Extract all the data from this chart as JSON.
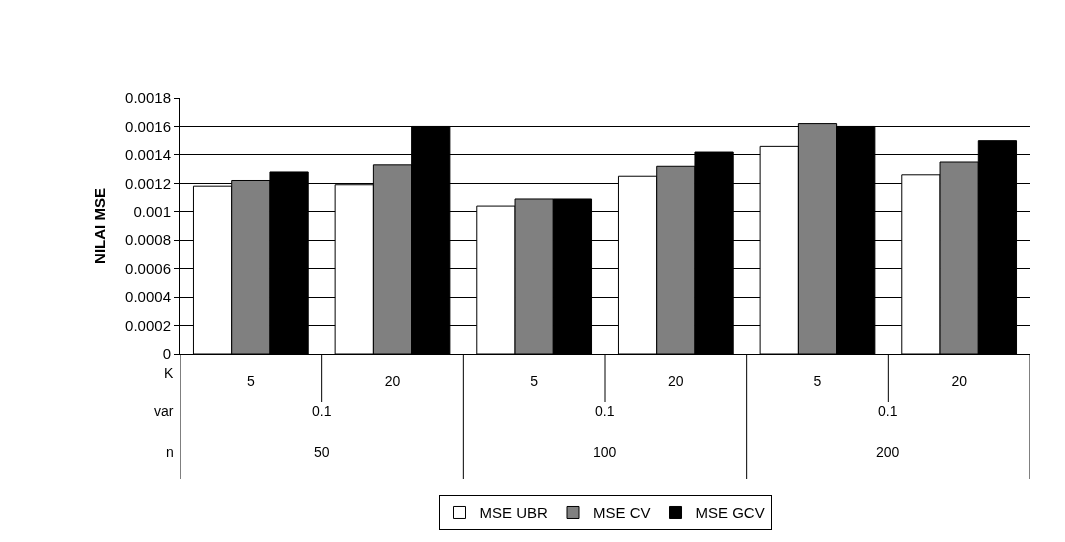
{
  "chart_data": {
    "type": "bar",
    "ylabel": "NILAI MSE",
    "categories": [
      "5",
      "20",
      "5",
      "20",
      "5",
      "20"
    ],
    "series": [
      {
        "name": "MSE UBR",
        "color": "#ffffff",
        "values": [
          0.00118,
          0.00119,
          0.00104,
          0.00125,
          0.00146,
          0.00126
        ]
      },
      {
        "name": "MSE CV",
        "color": "#808080",
        "values": [
          0.00122,
          0.00133,
          0.00109,
          0.00132,
          0.00162,
          0.00135
        ]
      },
      {
        "name": "MSE GCV",
        "color": "#000000",
        "values": [
          0.00128,
          0.0016,
          0.00109,
          0.00142,
          0.0016,
          0.0015
        ]
      }
    ],
    "annotations": [
      "K",
      "var",
      "n",
      "0.1",
      "0.1",
      "0.1",
      "50",
      "100",
      "200"
    ],
    "ylim": [
      0,
      0.0018
    ],
    "yticks": [
      0,
      0.0002,
      0.0004,
      0.0006,
      0.0008,
      0.001,
      0.0012,
      0.0014,
      0.0016,
      0.0018
    ],
    "grid": "y",
    "legend": "bottom"
  }
}
